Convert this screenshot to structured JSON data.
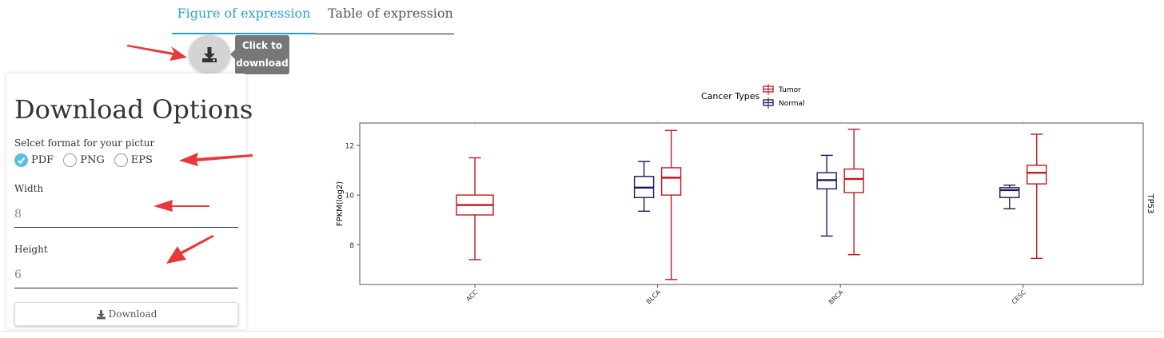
{
  "tabs": [
    {
      "label": "Figure of expression",
      "active": true
    },
    {
      "label": "Table of expression",
      "active": false
    }
  ],
  "download_fab": {
    "icon": "download-icon",
    "tooltip_line1": "Click to",
    "tooltip_line2": "download"
  },
  "options": {
    "title": "Download Options",
    "format_label": "Selcet format for your pictur",
    "formats": [
      {
        "label": "PDF",
        "checked": true
      },
      {
        "label": "PNG",
        "checked": false
      },
      {
        "label": "EPS",
        "checked": false
      }
    ],
    "width_label": "Width",
    "width_value": "8",
    "height_label": "Height",
    "height_value": "6",
    "download_label": "Download"
  },
  "colors": {
    "accent": "#2a9fd6",
    "tumor": "#c0181e",
    "normal": "#1a1a5e",
    "checked": "#5bc0de"
  },
  "chart_data": {
    "type": "boxplot",
    "ylabel": "FPKM(log2)",
    "facet_label": "TP53",
    "legend": {
      "title": "Cancer Types",
      "position": "top",
      "entries": [
        "Tumor",
        "Normal"
      ]
    },
    "categories": [
      "ACC",
      "BLCA",
      "BRCA",
      "CESC"
    ],
    "yticks": [
      8,
      10,
      12
    ],
    "ylim": [
      6.4,
      12.9
    ],
    "grid": false,
    "series": [
      {
        "name": "Tumor",
        "boxes": [
          {
            "category": "ACC",
            "min": 7.4,
            "q1": 9.2,
            "median": 9.6,
            "q3": 10.0,
            "max": 11.5
          },
          {
            "category": "BLCA",
            "min": 6.6,
            "q1": 10.0,
            "median": 10.7,
            "q3": 11.1,
            "max": 12.6
          },
          {
            "category": "BRCA",
            "min": 7.6,
            "q1": 10.1,
            "median": 10.65,
            "q3": 11.05,
            "max": 12.65
          },
          {
            "category": "CESC",
            "min": 7.45,
            "q1": 10.45,
            "median": 10.9,
            "q3": 11.2,
            "max": 12.45
          }
        ]
      },
      {
        "name": "Normal",
        "boxes": [
          {
            "category": "BLCA",
            "min": 9.35,
            "q1": 9.9,
            "median": 10.3,
            "q3": 10.75,
            "max": 11.35
          },
          {
            "category": "BRCA",
            "min": 8.35,
            "q1": 10.25,
            "median": 10.6,
            "q3": 10.9,
            "max": 11.6
          },
          {
            "category": "CESC",
            "min": 9.45,
            "q1": 9.9,
            "median": 10.2,
            "q3": 10.3,
            "max": 10.4
          }
        ]
      }
    ]
  }
}
